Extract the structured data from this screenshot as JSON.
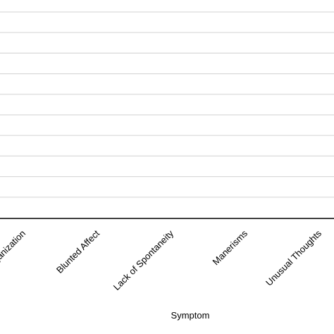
{
  "chart_data": {
    "type": "bar",
    "title": "",
    "xlabel": "Symptom",
    "ylabel": "",
    "categories": [
      "Disorganization",
      "Blunted Affect",
      "Lack of Spontaneity",
      "Manerisms",
      "Unusual Thoughts"
    ],
    "series": [],
    "grid": true,
    "legend": "none"
  },
  "colors": {
    "gridline": "#d9d9d9",
    "axis": "#000000",
    "text": "#000000"
  }
}
